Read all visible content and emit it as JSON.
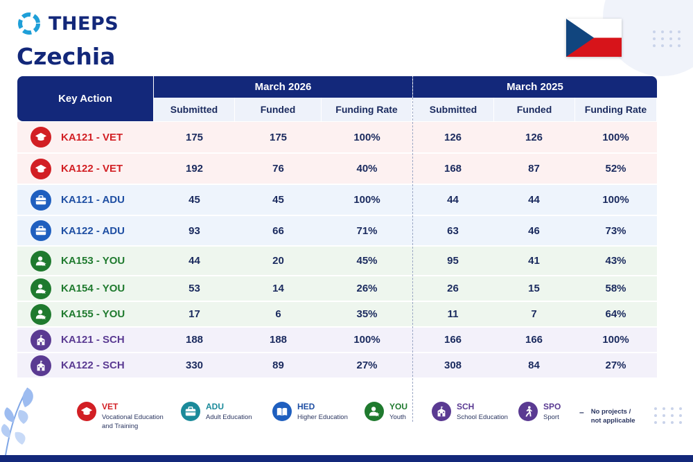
{
  "brand": {
    "logo_text": "THEPS",
    "country": "Czechia"
  },
  "colors": {
    "navy": "#13287a",
    "vet": "#d21f24",
    "adu": "#1f4fa3",
    "you": "#1f7a2e",
    "sch": "#5a3a92"
  },
  "table": {
    "key_action_header": "Key Action",
    "periods": [
      {
        "title": "March 2026",
        "columns": [
          "Submitted",
          "Funded",
          "Funding Rate"
        ]
      },
      {
        "title": "March 2025",
        "columns": [
          "Submitted",
          "Funded",
          "Funding Rate"
        ]
      }
    ],
    "rows": [
      {
        "action": "KA121 - VET",
        "icon": "graduation-cap-icon",
        "cur": [
          "175",
          "175",
          "100%"
        ],
        "prev": [
          "126",
          "126",
          "100%"
        ]
      },
      {
        "action": "KA122 - VET",
        "icon": "graduation-cap-icon",
        "cur": [
          "192",
          "76",
          "40%"
        ],
        "prev": [
          "168",
          "87",
          "52%"
        ]
      },
      {
        "action": "KA121 - ADU",
        "icon": "briefcase-icon",
        "cur": [
          "45",
          "45",
          "100%"
        ],
        "prev": [
          "44",
          "44",
          "100%"
        ]
      },
      {
        "action": "KA122 - ADU",
        "icon": "briefcase-icon",
        "cur": [
          "93",
          "66",
          "71%"
        ],
        "prev": [
          "63",
          "46",
          "73%"
        ]
      },
      {
        "action": "KA153 - YOU",
        "icon": "youth-person-icon",
        "cur": [
          "44",
          "20",
          "45%"
        ],
        "prev": [
          "95",
          "41",
          "43%"
        ]
      },
      {
        "action": "KA154 - YOU",
        "icon": "youth-person-icon",
        "cur": [
          "53",
          "14",
          "26%"
        ],
        "prev": [
          "26",
          "15",
          "58%"
        ]
      },
      {
        "action": "KA155 - YOU",
        "icon": "youth-person-icon",
        "cur": [
          "17",
          "6",
          "35%"
        ],
        "prev": [
          "11",
          "7",
          "64%"
        ]
      },
      {
        "action": "KA121 - SCH",
        "icon": "school-building-icon",
        "cur": [
          "188",
          "188",
          "100%"
        ],
        "prev": [
          "166",
          "166",
          "100%"
        ]
      },
      {
        "action": "KA122 - SCH",
        "icon": "school-building-icon",
        "cur": [
          "330",
          "89",
          "27%"
        ],
        "prev": [
          "308",
          "84",
          "27%"
        ]
      }
    ]
  },
  "legend": {
    "vet": {
      "code": "VET",
      "desc1": "Vocational Education",
      "desc2": "and Training"
    },
    "adu": {
      "code": "ADU",
      "desc1": "Adult Education"
    },
    "hed": {
      "code": "HED",
      "desc1": "Higher Education"
    },
    "you": {
      "code": "YOU",
      "desc1": "Youth"
    },
    "sch": {
      "code": "SCH",
      "desc1": "School Education"
    },
    "spo": {
      "code": "SPO",
      "desc1": "Sport"
    },
    "na": {
      "symbol": "–",
      "line1": "No projects /",
      "line2": "not applicable"
    }
  }
}
